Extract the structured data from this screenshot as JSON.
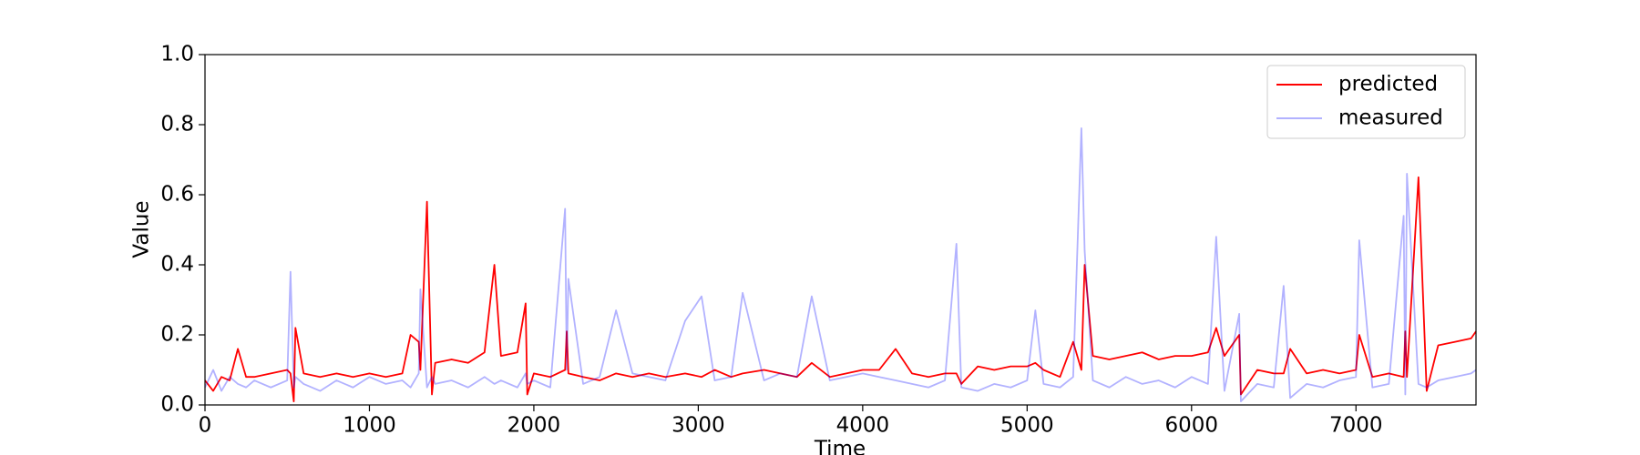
{
  "chart_data": {
    "type": "line",
    "x_label": "Time",
    "y_label": "Value",
    "x": [
      0,
      50,
      100,
      150,
      200,
      250,
      300,
      400,
      500,
      520,
      540,
      550,
      600,
      700,
      800,
      900,
      1000,
      1100,
      1200,
      1250,
      1300,
      1310,
      1350,
      1380,
      1400,
      1500,
      1600,
      1700,
      1760,
      1800,
      1900,
      1950,
      1960,
      2000,
      2100,
      2190,
      2200,
      2210,
      2300,
      2400,
      2500,
      2600,
      2700,
      2800,
      2920,
      3020,
      3100,
      3200,
      3270,
      3400,
      3500,
      3600,
      3690,
      3800,
      3900,
      4000,
      4100,
      4200,
      4300,
      4400,
      4500,
      4570,
      4600,
      4700,
      4800,
      4900,
      5000,
      5050,
      5100,
      5200,
      5280,
      5330,
      5350,
      5400,
      5500,
      5600,
      5700,
      5800,
      5900,
      6000,
      6100,
      6150,
      6200,
      6290,
      6300,
      6400,
      6500,
      6560,
      6600,
      6700,
      6800,
      6900,
      7000,
      7020,
      7100,
      7200,
      7290,
      7300,
      7310,
      7380,
      7430,
      7500,
      7600,
      7700,
      7730
    ],
    "series": [
      {
        "name": "predicted",
        "color": "#ff0000",
        "opacity": 1,
        "values": [
          0.07,
          0.04,
          0.08,
          0.07,
          0.16,
          0.08,
          0.08,
          0.09,
          0.1,
          0.09,
          0.01,
          0.22,
          0.09,
          0.08,
          0.09,
          0.08,
          0.09,
          0.08,
          0.09,
          0.2,
          0.18,
          0.1,
          0.58,
          0.03,
          0.12,
          0.13,
          0.12,
          0.15,
          0.4,
          0.14,
          0.15,
          0.29,
          0.03,
          0.09,
          0.08,
          0.1,
          0.21,
          0.09,
          0.08,
          0.07,
          0.09,
          0.08,
          0.09,
          0.08,
          0.09,
          0.08,
          0.1,
          0.08,
          0.09,
          0.1,
          0.09,
          0.08,
          0.12,
          0.08,
          0.09,
          0.1,
          0.1,
          0.16,
          0.09,
          0.08,
          0.09,
          0.09,
          0.06,
          0.11,
          0.1,
          0.11,
          0.11,
          0.12,
          0.1,
          0.08,
          0.18,
          0.1,
          0.4,
          0.14,
          0.13,
          0.14,
          0.15,
          0.13,
          0.14,
          0.14,
          0.15,
          0.22,
          0.14,
          0.2,
          0.03,
          0.1,
          0.09,
          0.09,
          0.16,
          0.09,
          0.1,
          0.09,
          0.1,
          0.2,
          0.08,
          0.09,
          0.08,
          0.21,
          0.08,
          0.65,
          0.04,
          0.17,
          0.18,
          0.19,
          0.21
        ]
      },
      {
        "name": "measured",
        "color": "#0000ff",
        "opacity": 0.3,
        "values": [
          0.05,
          0.1,
          0.04,
          0.08,
          0.06,
          0.05,
          0.07,
          0.05,
          0.07,
          0.38,
          0.05,
          0.08,
          0.06,
          0.04,
          0.07,
          0.05,
          0.08,
          0.06,
          0.07,
          0.05,
          0.09,
          0.33,
          0.05,
          0.08,
          0.06,
          0.07,
          0.05,
          0.08,
          0.06,
          0.07,
          0.05,
          0.09,
          0.06,
          0.07,
          0.05,
          0.56,
          0.1,
          0.36,
          0.06,
          0.08,
          0.27,
          0.09,
          0.08,
          0.07,
          0.24,
          0.31,
          0.07,
          0.08,
          0.32,
          0.07,
          0.09,
          0.08,
          0.31,
          0.07,
          0.08,
          0.09,
          0.08,
          0.07,
          0.06,
          0.05,
          0.07,
          0.46,
          0.05,
          0.04,
          0.06,
          0.05,
          0.07,
          0.27,
          0.06,
          0.05,
          0.08,
          0.79,
          0.44,
          0.07,
          0.05,
          0.08,
          0.06,
          0.07,
          0.05,
          0.08,
          0.06,
          0.48,
          0.04,
          0.26,
          0.01,
          0.06,
          0.05,
          0.34,
          0.02,
          0.06,
          0.05,
          0.07,
          0.08,
          0.47,
          0.05,
          0.06,
          0.54,
          0.03,
          0.66,
          0.06,
          0.05,
          0.07,
          0.08,
          0.09,
          0.1
        ]
      }
    ],
    "xlim": [
      0,
      7730
    ],
    "ylim": [
      0,
      1
    ],
    "xticks": [
      0,
      1000,
      2000,
      3000,
      4000,
      5000,
      6000,
      7000
    ],
    "yticks": [
      {
        "value": 0,
        "label": "0.0"
      },
      0.2,
      0.4,
      0.6,
      0.8,
      {
        "value": 1,
        "label": "1.0"
      }
    ],
    "legend": "upper right",
    "grid": false
  }
}
